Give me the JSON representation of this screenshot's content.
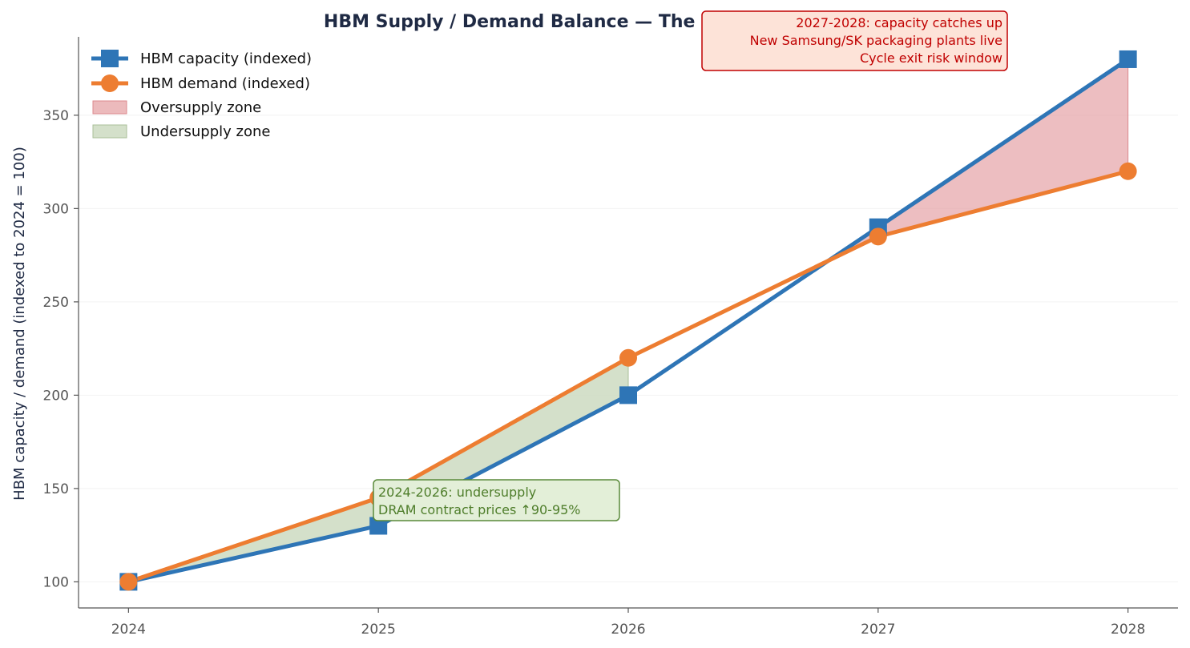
{
  "chart_data": {
    "type": "line",
    "title": "HBM Supply / Demand Balance — The 2028 cycle exit window",
    "xlabel": "",
    "ylabel": "HBM capacity / demand (indexed to 2024 = 100)",
    "x": [
      2024,
      2025,
      2026,
      2027,
      2028
    ],
    "xlim": [
      2023.8,
      2028.2
    ],
    "ylim": [
      86,
      392
    ],
    "yticks": [
      100,
      150,
      200,
      250,
      300,
      350
    ],
    "grid": true,
    "legend_position": "top-left",
    "series": [
      {
        "name": "HBM capacity (indexed)",
        "values": [
          100,
          130,
          200,
          290,
          380
        ],
        "color": "#2e75b6",
        "marker": "square"
      },
      {
        "name": "HBM demand (indexed)",
        "values": [
          100,
          145,
          220,
          285,
          320
        ],
        "color": "#ed7d31",
        "marker": "circle"
      }
    ],
    "fills": [
      {
        "name": "Oversupply zone",
        "color": "#e6a3a6",
        "range": [
          2027,
          2028
        ]
      },
      {
        "name": "Undersupply zone",
        "color": "#c5d6b8",
        "range": [
          2024,
          2026
        ]
      }
    ],
    "annotations": [
      {
        "lines": [
          "2024-2026: undersupply",
          "DRAM contract prices ↑90-95%"
        ],
        "color": "#4e7d2a",
        "bg": "#e3efd8",
        "border": "#5a8a3a"
      },
      {
        "lines": [
          "2027-2028: capacity catches up",
          "New Samsung/SK packaging plants live",
          "Cycle exit risk window"
        ],
        "color": "#c00000",
        "bg": "#fde3d8",
        "border": "#c00000"
      }
    ]
  }
}
